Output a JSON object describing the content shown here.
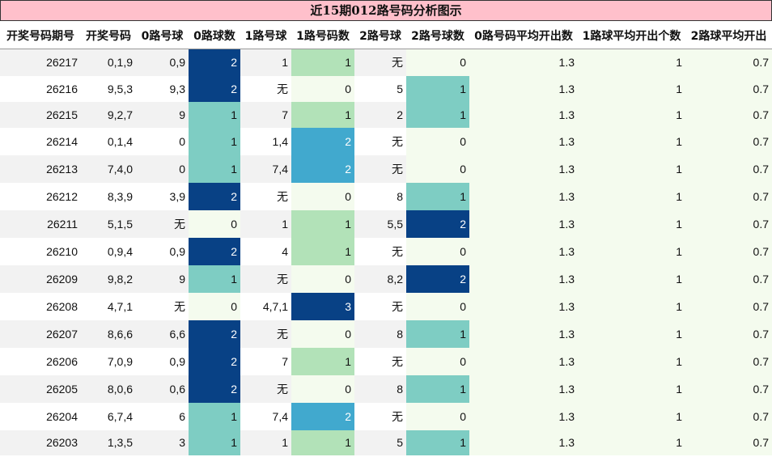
{
  "title": "近15期012路号码分析图示",
  "headers": [
    "开奖号码期号",
    "开奖号码",
    "0路号球",
    "0路球数",
    "1路号球",
    "1路号码数",
    "2路号球",
    "2路号球数",
    "0路号码平均开出数",
    "1路球平均开出个数",
    "2路球平均开出"
  ],
  "rows": [
    {
      "issue": "26217",
      "nums": "0,1,9",
      "r0": "0,9",
      "c0": "2",
      "r1": "1",
      "c1": "1",
      "r2": "无",
      "c2": "0",
      "a0": "1.3",
      "a1": "1",
      "a2": "0.7"
    },
    {
      "issue": "26216",
      "nums": "9,5,3",
      "r0": "9,3",
      "c0": "2",
      "r1": "无",
      "c1": "0",
      "r2": "5",
      "c2": "1",
      "a0": "1.3",
      "a1": "1",
      "a2": "0.7"
    },
    {
      "issue": "26215",
      "nums": "9,2,7",
      "r0": "9",
      "c0": "1",
      "r1": "7",
      "c1": "1",
      "r2": "2",
      "c2": "1",
      "a0": "1.3",
      "a1": "1",
      "a2": "0.7"
    },
    {
      "issue": "26214",
      "nums": "0,1,4",
      "r0": "0",
      "c0": "1",
      "r1": "1,4",
      "c1": "2",
      "r2": "无",
      "c2": "0",
      "a0": "1.3",
      "a1": "1",
      "a2": "0.7"
    },
    {
      "issue": "26213",
      "nums": "7,4,0",
      "r0": "0",
      "c0": "1",
      "r1": "7,4",
      "c1": "2",
      "r2": "无",
      "c2": "0",
      "a0": "1.3",
      "a1": "1",
      "a2": "0.7"
    },
    {
      "issue": "26212",
      "nums": "8,3,9",
      "r0": "3,9",
      "c0": "2",
      "r1": "无",
      "c1": "0",
      "r2": "8",
      "c2": "1",
      "a0": "1.3",
      "a1": "1",
      "a2": "0.7"
    },
    {
      "issue": "26211",
      "nums": "5,1,5",
      "r0": "无",
      "c0": "0",
      "r1": "1",
      "c1": "1",
      "r2": "5,5",
      "c2": "2",
      "a0": "1.3",
      "a1": "1",
      "a2": "0.7"
    },
    {
      "issue": "26210",
      "nums": "0,9,4",
      "r0": "0,9",
      "c0": "2",
      "r1": "4",
      "c1": "1",
      "r2": "无",
      "c2": "0",
      "a0": "1.3",
      "a1": "1",
      "a2": "0.7"
    },
    {
      "issue": "26209",
      "nums": "9,8,2",
      "r0": "9",
      "c0": "1",
      "r1": "无",
      "c1": "0",
      "r2": "8,2",
      "c2": "2",
      "a0": "1.3",
      "a1": "1",
      "a2": "0.7"
    },
    {
      "issue": "26208",
      "nums": "4,7,1",
      "r0": "无",
      "c0": "0",
      "r1": "4,7,1",
      "c1": "3",
      "r2": "无",
      "c2": "0",
      "a0": "1.3",
      "a1": "1",
      "a2": "0.7"
    },
    {
      "issue": "26207",
      "nums": "8,6,6",
      "r0": "6,6",
      "c0": "2",
      "r1": "无",
      "c1": "0",
      "r2": "8",
      "c2": "1",
      "a0": "1.3",
      "a1": "1",
      "a2": "0.7"
    },
    {
      "issue": "26206",
      "nums": "7,0,9",
      "r0": "0,9",
      "c0": "2",
      "r1": "7",
      "c1": "1",
      "r2": "无",
      "c2": "0",
      "a0": "1.3",
      "a1": "1",
      "a2": "0.7"
    },
    {
      "issue": "26205",
      "nums": "8,0,6",
      "r0": "0,6",
      "c0": "2",
      "r1": "无",
      "c1": "0",
      "r2": "8",
      "c2": "1",
      "a0": "1.3",
      "a1": "1",
      "a2": "0.7"
    },
    {
      "issue": "26204",
      "nums": "6,7,4",
      "r0": "6",
      "c0": "1",
      "r1": "7,4",
      "c1": "2",
      "r2": "无",
      "c2": "0",
      "a0": "1.3",
      "a1": "1",
      "a2": "0.7"
    },
    {
      "issue": "26203",
      "nums": "1,3,5",
      "r0": "3",
      "c0": "1",
      "r1": "1",
      "c1": "1",
      "r2": "5",
      "c2": "1",
      "a0": "1.3",
      "a1": "1",
      "a2": "0.7"
    }
  ]
}
